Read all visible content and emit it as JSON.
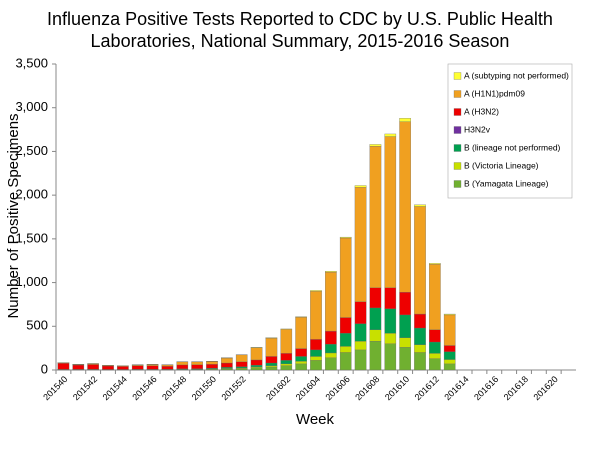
{
  "chart_data": {
    "type": "stacked_bar",
    "title": [
      "Influenza Positive Tests Reported to CDC by U.S. Public Health",
      "Laboratories, National Summary, 2015-2016 Season"
    ],
    "x_label": "Week",
    "y_label": "Number of Positive Specimens",
    "categories": [
      "201540",
      null,
      "201542",
      null,
      "201544",
      null,
      "201546",
      null,
      "201548",
      null,
      "201550",
      null,
      "201552",
      null,
      null,
      "201602",
      null,
      "201604",
      null,
      "201606",
      null,
      "201608",
      null,
      "201610",
      null,
      "201612",
      null,
      "201614",
      null,
      "201616",
      null,
      "201618",
      null,
      "201620",
      null
    ],
    "series": [
      {
        "name": "A (subtyping not performed)",
        "color": "#ffff33",
        "values": [
          2,
          2,
          2,
          2,
          2,
          2,
          2,
          2,
          2,
          2,
          2,
          3,
          2,
          5,
          5,
          5,
          5,
          10,
          10,
          10,
          20,
          20,
          30,
          40,
          20,
          10,
          10,
          0,
          0,
          0,
          0,
          0,
          0,
          0,
          0
        ]
      },
      {
        "name": "A (H1N1)pdm09",
        "color": "#f0a020",
        "values": [
          6,
          6,
          10,
          7,
          7,
          10,
          15,
          15,
          35,
          33,
          33,
          57,
          80,
          140,
          210,
          275,
          360,
          550,
          675,
          910,
          1310,
          1620,
          1730,
          1950,
          1230,
          750,
          350,
          0,
          0,
          0,
          0,
          0,
          0,
          0,
          0
        ]
      },
      {
        "name": "A (H3N2)",
        "color": "#ee0000",
        "values": [
          70,
          50,
          55,
          40,
          35,
          40,
          40,
          35,
          45,
          45,
          45,
          50,
          55,
          60,
          75,
          80,
          90,
          120,
          150,
          180,
          250,
          230,
          240,
          260,
          160,
          140,
          70,
          0,
          0,
          0,
          0,
          0,
          0,
          0,
          0
        ]
      },
      {
        "name": "H3N2v",
        "color": "#7030a0",
        "values": [
          0,
          0,
          0,
          0,
          0,
          0,
          0,
          0,
          0,
          0,
          0,
          0,
          0,
          0,
          0,
          0,
          0,
          0,
          0,
          0,
          0,
          0,
          0,
          0,
          0,
          0,
          0,
          0,
          0,
          0,
          0,
          0,
          0,
          0,
          0
        ]
      },
      {
        "name": "B (lineage not performed)",
        "color": "#00a050",
        "values": [
          2,
          2,
          3,
          2,
          2,
          3,
          3,
          3,
          5,
          6,
          8,
          12,
          15,
          20,
          30,
          40,
          55,
          75,
          100,
          150,
          200,
          250,
          280,
          260,
          190,
          130,
          90,
          0,
          0,
          0,
          0,
          0,
          0,
          0,
          0
        ]
      },
      {
        "name": "B (Victoria Lineage)",
        "color": "#c8e000",
        "values": [
          2,
          2,
          2,
          2,
          2,
          2,
          2,
          2,
          3,
          3,
          4,
          6,
          8,
          10,
          15,
          20,
          30,
          45,
          55,
          70,
          100,
          130,
          120,
          110,
          90,
          60,
          50,
          0,
          0,
          0,
          0,
          0,
          0,
          0,
          0
        ]
      },
      {
        "name": "B (Yamagata Lineage)",
        "color": "#70b030",
        "values": [
          3,
          3,
          3,
          2,
          2,
          3,
          3,
          3,
          5,
          6,
          8,
          12,
          15,
          25,
          35,
          50,
          70,
          110,
          140,
          200,
          230,
          330,
          300,
          260,
          200,
          130,
          70,
          0,
          0,
          0,
          0,
          0,
          0,
          0,
          0
        ]
      }
    ],
    "ylim": [
      0,
      3500
    ],
    "yticks": [
      0,
      500,
      {
        "value": 1000,
        "label": "1,000"
      },
      {
        "value": 1500,
        "label": "1,500"
      },
      {
        "value": 2000,
        "label": "2,000"
      },
      {
        "value": 2500,
        "label": "2,500"
      },
      {
        "value": 3000,
        "label": "3,000"
      },
      {
        "value": 3500,
        "label": "3,500"
      }
    ],
    "legend": "upper right",
    "grid": false
  }
}
